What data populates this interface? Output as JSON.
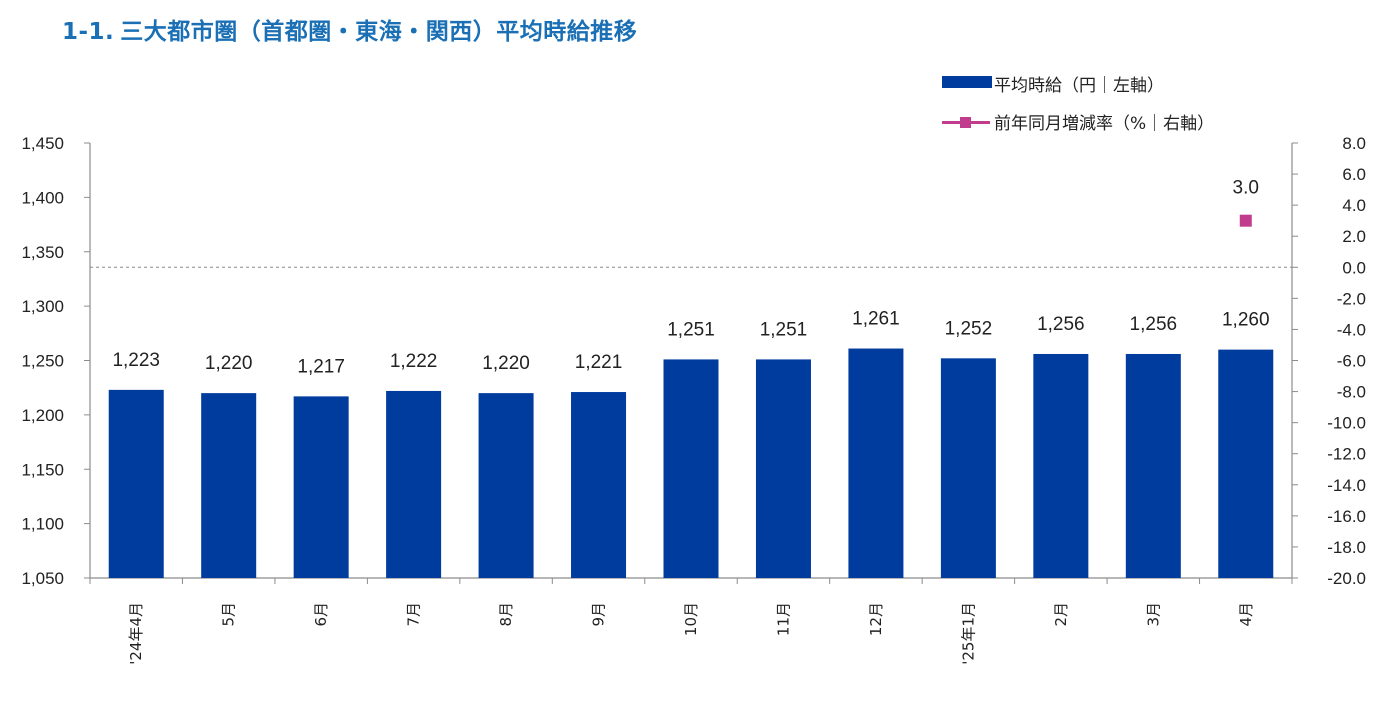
{
  "title": {
    "number": "1-1.",
    "text": "三大都市圏（首都圏・東海・関西）平均時給推移",
    "color": "#1a6fb5"
  },
  "legend": {
    "bar_label": "平均時給（円｜左軸）",
    "line_label": "前年同月増減率（%｜右軸）"
  },
  "colors": {
    "bar": "#003b9e",
    "line": "#c23c8e",
    "axis": "#8c8c8c",
    "zero_line": "#8c8c8c"
  },
  "chart_data": {
    "type": "bar",
    "categories": [
      "'24年4月",
      "5月",
      "6月",
      "7月",
      "8月",
      "9月",
      "10月",
      "11月",
      "12月",
      "'25年1月",
      "2月",
      "3月",
      "4月"
    ],
    "series": [
      {
        "name": "平均時給（円｜左軸）",
        "type": "bar",
        "axis": "left",
        "values": [
          1223,
          1220,
          1217,
          1222,
          1220,
          1221,
          1251,
          1251,
          1261,
          1252,
          1256,
          1256,
          1260
        ],
        "labels": [
          "1,223",
          "1,220",
          "1,217",
          "1,222",
          "1,220",
          "1,221",
          "1,251",
          "1,251",
          "1,261",
          "1,252",
          "1,256",
          "1,256",
          "1,260"
        ]
      },
      {
        "name": "前年同月増減率（%｜右軸）",
        "type": "line",
        "axis": "right",
        "values": [
          null,
          null,
          null,
          null,
          null,
          null,
          null,
          null,
          null,
          null,
          null,
          null,
          3.0
        ],
        "labels": [
          null,
          null,
          null,
          null,
          null,
          null,
          null,
          null,
          null,
          null,
          null,
          null,
          "3.0"
        ]
      }
    ],
    "y_left": {
      "min": 1050,
      "max": 1450,
      "ticks": [
        1450,
        1400,
        1350,
        1300,
        1250,
        1200,
        1150,
        1100,
        1050
      ],
      "tick_labels": [
        "1,450",
        "1,400",
        "1,350",
        "1,300",
        "1,250",
        "1,200",
        "1,150",
        "1,100",
        "1,050"
      ]
    },
    "y_right": {
      "min": -20.0,
      "max": 8.0,
      "ticks": [
        8.0,
        6.0,
        4.0,
        2.0,
        0.0,
        -2.0,
        -4.0,
        -6.0,
        -8.0,
        -10.0,
        -12.0,
        -14.0,
        -16.0,
        -18.0,
        -20.0
      ],
      "tick_labels": [
        "8.0",
        "6.0",
        "4.0",
        "2.0",
        "0.0",
        "-2.0",
        "-4.0",
        "-6.0",
        "-8.0",
        "-10.0",
        "-12.0",
        "-14.0",
        "-16.0",
        "-18.0",
        "-20.0"
      ],
      "zero_line": "dashed"
    },
    "grid": false,
    "legend_position": "top-right"
  }
}
